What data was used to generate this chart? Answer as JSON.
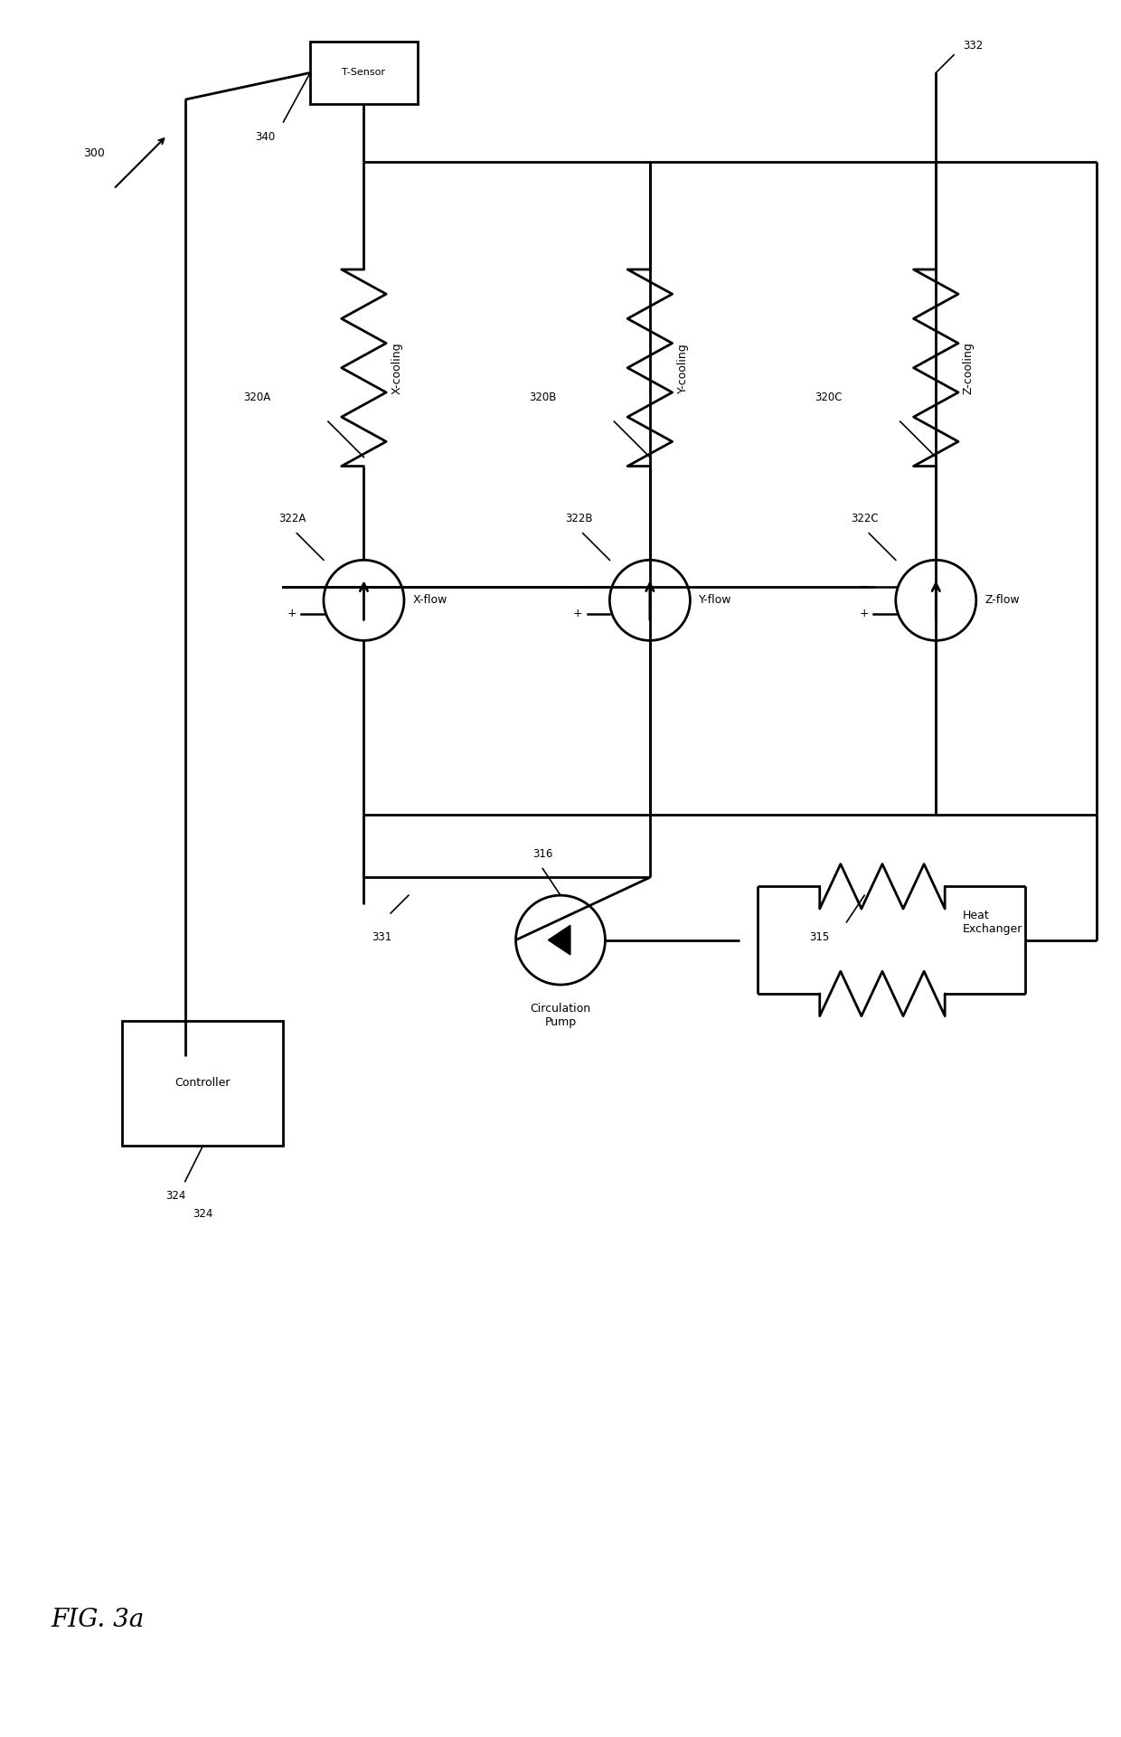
{
  "bg_color": "#ffffff",
  "line_color": "#000000",
  "line_width": 2.0,
  "fig_width": 12.4,
  "fig_height": 19.21,
  "title": "FIG. 3a",
  "label_300": "300",
  "label_332": "332",
  "label_340": "340",
  "label_324": "324",
  "label_331": "331",
  "label_316": "316",
  "label_315": "315",
  "label_320A": "320A",
  "label_320B": "320B",
  "label_320C": "320C",
  "label_322A": "322A",
  "label_322B": "322B",
  "label_322C": "322C",
  "label_tsensor": "T-Sensor",
  "label_xcooling": "X-cooling",
  "label_ycooling": "Y-cooling",
  "label_zcooling": "Z-cooling",
  "label_xflow": "X-flow",
  "label_yflow": "Y-flow",
  "label_zflow": "Z-flow",
  "label_controller": "Controller",
  "label_circ_pump": "Circulation\nPump",
  "label_heat_exchanger": "Heat\nExchanger"
}
